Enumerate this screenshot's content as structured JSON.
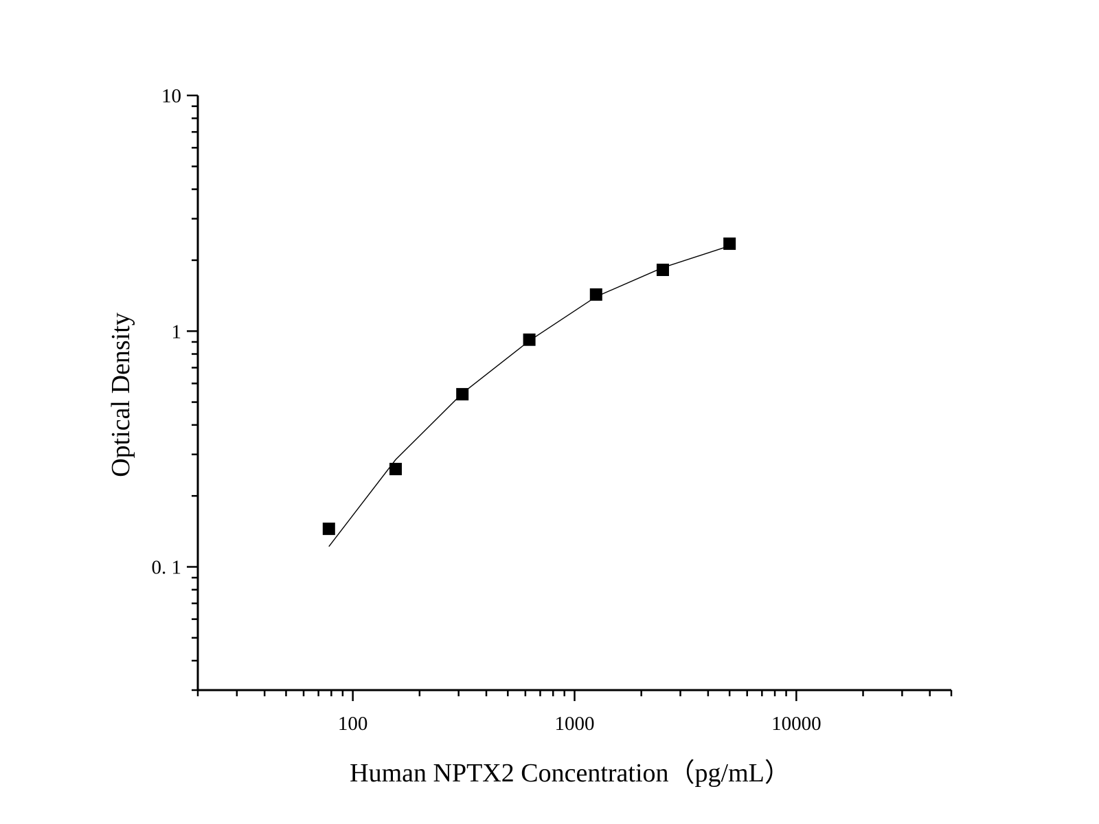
{
  "chart_data": {
    "type": "scatter",
    "xlabel": "Human NPTX2 Concentration（pg/mL）",
    "ylabel": "Optical Density",
    "xscale": "log",
    "yscale": "log",
    "xlim": [
      20,
      50000
    ],
    "ylim": [
      0.03,
      10
    ],
    "x_ticks": [
      {
        "value": 100,
        "label": "100"
      },
      {
        "value": 1000,
        "label": "1000"
      },
      {
        "value": 10000,
        "label": "10000"
      }
    ],
    "y_ticks": [
      {
        "value": 0.1,
        "label": "0. 1"
      },
      {
        "value": 1,
        "label": "1"
      },
      {
        "value": 10,
        "label": "10"
      }
    ],
    "grid": false,
    "legend": "none",
    "marker": "square",
    "color": "#000000",
    "series": [
      {
        "points": [
          {
            "x": 78,
            "y": 0.145
          },
          {
            "x": 156,
            "y": 0.26
          },
          {
            "x": 312,
            "y": 0.54
          },
          {
            "x": 625,
            "y": 0.92
          },
          {
            "x": 1250,
            "y": 1.43
          },
          {
            "x": 2500,
            "y": 1.82
          },
          {
            "x": 5000,
            "y": 2.35
          }
        ]
      }
    ],
    "fit_curve": {
      "points": [
        {
          "x": 78,
          "y": 0.122
        },
        {
          "x": 156,
          "y": 0.285
        },
        {
          "x": 312,
          "y": 0.545
        },
        {
          "x": 625,
          "y": 0.91
        },
        {
          "x": 1250,
          "y": 1.4
        },
        {
          "x": 2500,
          "y": 1.86
        },
        {
          "x": 5000,
          "y": 2.3
        }
      ]
    }
  }
}
